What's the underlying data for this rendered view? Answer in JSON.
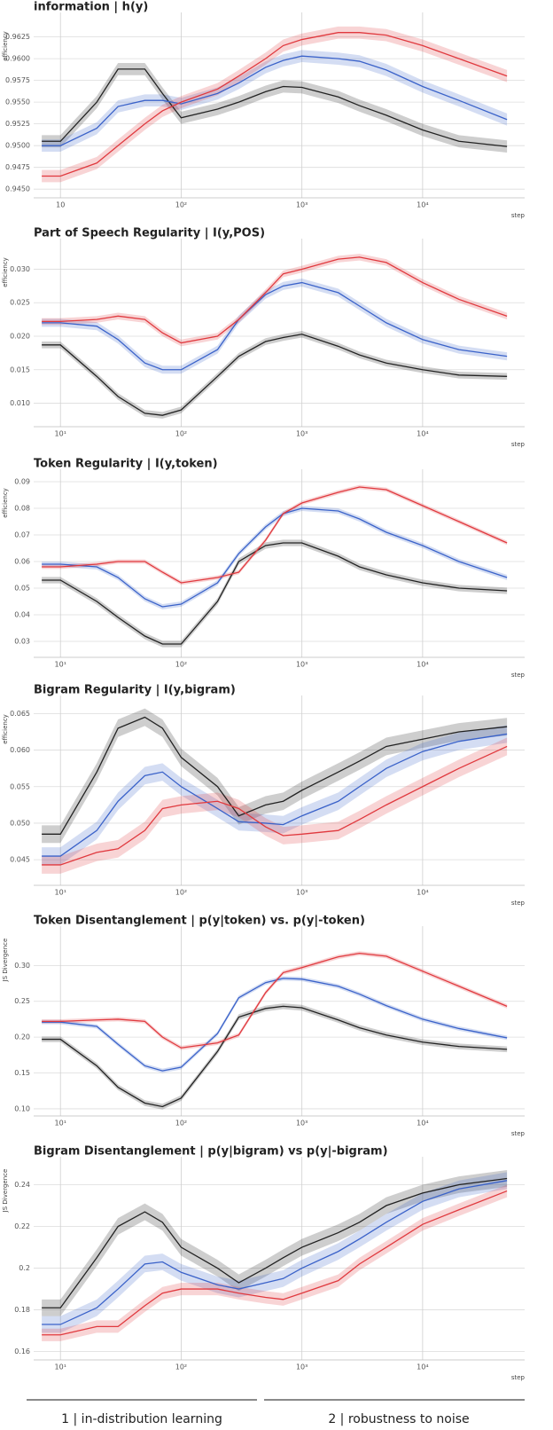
{
  "chart_data": [
    {
      "type": "line",
      "title": "information | h(y)",
      "y_label": "efficiency",
      "x_label": "step",
      "x_log": true,
      "grid": true,
      "x": [
        7,
        10,
        20,
        30,
        50,
        70,
        100,
        200,
        300,
        500,
        700,
        1000,
        2000,
        3000,
        5000,
        10000,
        20000,
        50000
      ],
      "xlim": [
        6,
        70000
      ],
      "xticks": [
        {
          "value": 10,
          "label": "10"
        },
        {
          "value": 100,
          "label": "10²"
        },
        {
          "value": 1000,
          "label": "10³"
        },
        {
          "value": 10000,
          "label": "10⁴"
        }
      ],
      "ylim": [
        0.944,
        0.9645
      ],
      "yticks": [
        {
          "value": 0.945,
          "label": "0.9450"
        },
        {
          "value": 0.9475,
          "label": "0.9475"
        },
        {
          "value": 0.95,
          "label": "0.9500"
        },
        {
          "value": 0.9525,
          "label": "0.9525"
        },
        {
          "value": 0.955,
          "label": "0.9550"
        },
        {
          "value": 0.9575,
          "label": "0.9575"
        },
        {
          "value": 0.96,
          "label": "0.9600"
        },
        {
          "value": 0.9625,
          "label": "0.9625"
        }
      ],
      "series": [
        {
          "color": "#222222",
          "band": 0.0007,
          "values": [
            0.9505,
            0.9505,
            0.955,
            0.9588,
            0.9588,
            0.956,
            0.9532,
            0.9542,
            0.955,
            0.9562,
            0.9568,
            0.9567,
            0.9556,
            0.9546,
            0.9535,
            0.9518,
            0.9505,
            0.9499
          ]
        },
        {
          "color": "#3a62c9",
          "band": 0.0007,
          "values": [
            0.95,
            0.95,
            0.952,
            0.9545,
            0.9552,
            0.9552,
            0.9548,
            0.956,
            0.9572,
            0.959,
            0.9598,
            0.9603,
            0.96,
            0.9597,
            0.9587,
            0.9568,
            0.9552,
            0.953
          ]
        },
        {
          "color": "#e0393e",
          "band": 0.0007,
          "values": [
            0.9465,
            0.9465,
            0.948,
            0.95,
            0.9525,
            0.954,
            0.955,
            0.9565,
            0.958,
            0.96,
            0.9615,
            0.9622,
            0.963,
            0.963,
            0.9627,
            0.9615,
            0.96,
            0.958
          ]
        }
      ]
    },
    {
      "type": "line",
      "title": "Part of Speech Regularity | I(y,POS)",
      "y_label": "efficiency",
      "x_label": "step",
      "x_log": true,
      "grid": true,
      "x": [
        7,
        10,
        20,
        30,
        50,
        70,
        100,
        200,
        300,
        500,
        700,
        1000,
        2000,
        3000,
        5000,
        10000,
        20000,
        50000
      ],
      "xlim": [
        6,
        70000
      ],
      "xticks": [
        {
          "value": 10,
          "label": "10¹"
        },
        {
          "value": 100,
          "label": "10²"
        },
        {
          "value": 1000,
          "label": "10³"
        },
        {
          "value": 10000,
          "label": "10⁴"
        }
      ],
      "ylim": [
        0.0065,
        0.0335
      ],
      "yticks": [
        {
          "value": 0.01,
          "label": "0.010"
        },
        0.015,
        {
          "value": 0.02,
          "label": "0.020"
        },
        0.025,
        {
          "value": 0.03,
          "label": "0.030"
        }
      ],
      "series": [
        {
          "color": "#222222",
          "band": 0.0005,
          "values": [
            0.0187,
            0.0187,
            0.014,
            0.011,
            0.0085,
            0.0082,
            0.009,
            0.014,
            0.017,
            0.0192,
            0.0198,
            0.0203,
            0.0185,
            0.0172,
            0.016,
            0.015,
            0.0142,
            0.014
          ]
        },
        {
          "color": "#3a62c9",
          "band": 0.0006,
          "values": [
            0.022,
            0.022,
            0.0215,
            0.0195,
            0.016,
            0.015,
            0.015,
            0.018,
            0.0225,
            0.0262,
            0.0275,
            0.028,
            0.0265,
            0.0245,
            0.022,
            0.0195,
            0.018,
            0.017
          ]
        },
        {
          "color": "#e0393e",
          "band": 0.0005,
          "values": [
            0.0222,
            0.0222,
            0.0225,
            0.023,
            0.0225,
            0.0205,
            0.019,
            0.02,
            0.0225,
            0.0265,
            0.0293,
            0.03,
            0.0315,
            0.0318,
            0.031,
            0.028,
            0.0255,
            0.023
          ]
        }
      ]
    },
    {
      "type": "line",
      "title": "Token Regularity | I(y,token)",
      "y_label": "efficiency",
      "x_label": "step",
      "x_log": true,
      "grid": true,
      "x": [
        7,
        10,
        20,
        30,
        50,
        70,
        100,
        200,
        300,
        500,
        700,
        1000,
        2000,
        3000,
        5000,
        10000,
        20000,
        50000
      ],
      "xlim": [
        6,
        70000
      ],
      "xticks": [
        {
          "value": 10,
          "label": "10¹"
        },
        {
          "value": 100,
          "label": "10²"
        },
        {
          "value": 1000,
          "label": "10³"
        },
        {
          "value": 10000,
          "label": "10⁴"
        }
      ],
      "ylim": [
        0.024,
        0.092
      ],
      "yticks": [
        0.03,
        0.04,
        0.05,
        0.06,
        0.07,
        0.08,
        0.09
      ],
      "series": [
        {
          "color": "#222222",
          "band": 0.0012,
          "values": [
            0.053,
            0.053,
            0.045,
            0.039,
            0.032,
            0.029,
            0.029,
            0.045,
            0.06,
            0.066,
            0.067,
            0.067,
            0.062,
            0.058,
            0.055,
            0.052,
            0.05,
            0.049
          ]
        },
        {
          "color": "#3a62c9",
          "band": 0.001,
          "values": [
            0.059,
            0.059,
            0.058,
            0.054,
            0.046,
            0.043,
            0.044,
            0.052,
            0.063,
            0.073,
            0.078,
            0.08,
            0.079,
            0.076,
            0.071,
            0.066,
            0.06,
            0.054
          ]
        },
        {
          "color": "#e0393e",
          "band": 0.0008,
          "values": [
            0.058,
            0.058,
            0.059,
            0.06,
            0.06,
            0.056,
            0.052,
            0.054,
            0.056,
            0.068,
            0.078,
            0.082,
            0.086,
            0.088,
            0.087,
            0.081,
            0.075,
            0.067
          ]
        }
      ]
    },
    {
      "type": "line",
      "title": "Bigram Regularity | I(y,bigram)",
      "y_label": "efficiency",
      "x_label": "step",
      "x_log": true,
      "grid": true,
      "x": [
        7,
        10,
        20,
        30,
        50,
        70,
        100,
        200,
        300,
        500,
        700,
        1000,
        2000,
        3000,
        5000,
        10000,
        20000,
        50000
      ],
      "xlim": [
        6,
        70000
      ],
      "xticks": [
        {
          "value": 10,
          "label": "10¹"
        },
        {
          "value": 100,
          "label": "10²"
        },
        {
          "value": 1000,
          "label": "10³"
        },
        {
          "value": 10000,
          "label": "10⁴"
        }
      ],
      "ylim": [
        0.0415,
        0.0665
      ],
      "yticks": [
        0.045,
        {
          "value": 0.05,
          "label": "0.050"
        },
        0.055,
        {
          "value": 0.06,
          "label": "0.060"
        },
        0.065
      ],
      "series": [
        {
          "color": "#222222",
          "band": 0.0012,
          "values": [
            0.0485,
            0.0485,
            0.057,
            0.063,
            0.0645,
            0.063,
            0.059,
            0.055,
            0.051,
            0.0525,
            0.053,
            0.0545,
            0.057,
            0.0585,
            0.0605,
            0.0615,
            0.0625,
            0.0632
          ]
        },
        {
          "color": "#3a62c9",
          "band": 0.0012,
          "values": [
            0.0455,
            0.0455,
            0.049,
            0.053,
            0.0565,
            0.057,
            0.055,
            0.052,
            0.0502,
            0.05,
            0.0498,
            0.051,
            0.053,
            0.055,
            0.0575,
            0.0598,
            0.0612,
            0.0622
          ]
        },
        {
          "color": "#e0393e",
          "band": 0.0012,
          "values": [
            0.0443,
            0.0443,
            0.046,
            0.0465,
            0.049,
            0.052,
            0.0525,
            0.053,
            0.052,
            0.0495,
            0.0483,
            0.0485,
            0.049,
            0.0505,
            0.0525,
            0.055,
            0.0575,
            0.0605
          ]
        }
      ]
    },
    {
      "type": "line",
      "title": "Token Disentanglement | p(y|token) vs. p(y|-token)",
      "y_label": "JS Divergence",
      "x_label": "step",
      "x_log": true,
      "grid": true,
      "x": [
        7,
        10,
        20,
        30,
        50,
        70,
        100,
        200,
        300,
        500,
        700,
        1000,
        2000,
        3000,
        5000,
        10000,
        20000,
        50000
      ],
      "xlim": [
        6,
        70000
      ],
      "xticks": [
        {
          "value": 10,
          "label": "10¹"
        },
        {
          "value": 100,
          "label": "10²"
        },
        {
          "value": 1000,
          "label": "10³"
        },
        {
          "value": 10000,
          "label": "10⁴"
        }
      ],
      "ylim": [
        0.09,
        0.345
      ],
      "yticks": [
        {
          "value": 0.1,
          "label": "0.10"
        },
        0.15,
        {
          "value": 0.2,
          "label": "0.20"
        },
        0.25,
        {
          "value": 0.3,
          "label": "0.30"
        }
      ],
      "series": [
        {
          "color": "#222222",
          "band": 0.004,
          "values": [
            0.197,
            0.197,
            0.16,
            0.13,
            0.108,
            0.103,
            0.115,
            0.18,
            0.228,
            0.24,
            0.243,
            0.241,
            0.224,
            0.213,
            0.203,
            0.193,
            0.187,
            0.183
          ]
        },
        {
          "color": "#3a62c9",
          "band": 0.003,
          "values": [
            0.221,
            0.221,
            0.215,
            0.19,
            0.16,
            0.153,
            0.158,
            0.205,
            0.255,
            0.276,
            0.282,
            0.281,
            0.271,
            0.26,
            0.244,
            0.225,
            0.212,
            0.199
          ]
        },
        {
          "color": "#e0393e",
          "band": 0.003,
          "values": [
            0.222,
            0.222,
            0.224,
            0.225,
            0.222,
            0.2,
            0.185,
            0.192,
            0.203,
            0.262,
            0.29,
            0.297,
            0.312,
            0.317,
            0.313,
            0.292,
            0.271,
            0.243
          ]
        }
      ]
    },
    {
      "type": "line",
      "title": "Bigram Disentanglement |  p(y|bigram) vs p(y|-bigram)",
      "y_label": "JS Divergence",
      "x_label": "step",
      "x_log": true,
      "grid": true,
      "x": [
        7,
        10,
        20,
        30,
        50,
        70,
        100,
        200,
        300,
        500,
        700,
        1000,
        2000,
        3000,
        5000,
        10000,
        20000,
        50000
      ],
      "xlim": [
        6,
        70000
      ],
      "xticks": [
        {
          "value": 10,
          "label": "10¹"
        },
        {
          "value": 100,
          "label": "10²"
        },
        {
          "value": 1000,
          "label": "10³"
        },
        {
          "value": 10000,
          "label": "10⁴"
        }
      ],
      "ylim": [
        0.156,
        0.25
      ],
      "yticks": [
        0.16,
        0.18,
        0.2,
        0.22,
        0.24
      ],
      "series": [
        {
          "color": "#222222",
          "band": 0.004,
          "values": [
            0.181,
            0.181,
            0.205,
            0.22,
            0.227,
            0.222,
            0.21,
            0.2,
            0.193,
            0.2,
            0.205,
            0.21,
            0.217,
            0.222,
            0.23,
            0.236,
            0.24,
            0.243
          ]
        },
        {
          "color": "#3a62c9",
          "band": 0.004,
          "values": [
            0.173,
            0.173,
            0.181,
            0.19,
            0.202,
            0.203,
            0.198,
            0.192,
            0.19,
            0.193,
            0.195,
            0.2,
            0.208,
            0.214,
            0.222,
            0.232,
            0.238,
            0.242
          ]
        },
        {
          "color": "#e0393e",
          "band": 0.003,
          "values": [
            0.168,
            0.168,
            0.172,
            0.172,
            0.182,
            0.188,
            0.19,
            0.19,
            0.188,
            0.186,
            0.185,
            0.188,
            0.194,
            0.202,
            0.21,
            0.221,
            0.228,
            0.237
          ]
        }
      ]
    }
  ],
  "footer": {
    "segments": [
      "1 | in-distribution learning",
      "2 | robustness to noise"
    ]
  }
}
